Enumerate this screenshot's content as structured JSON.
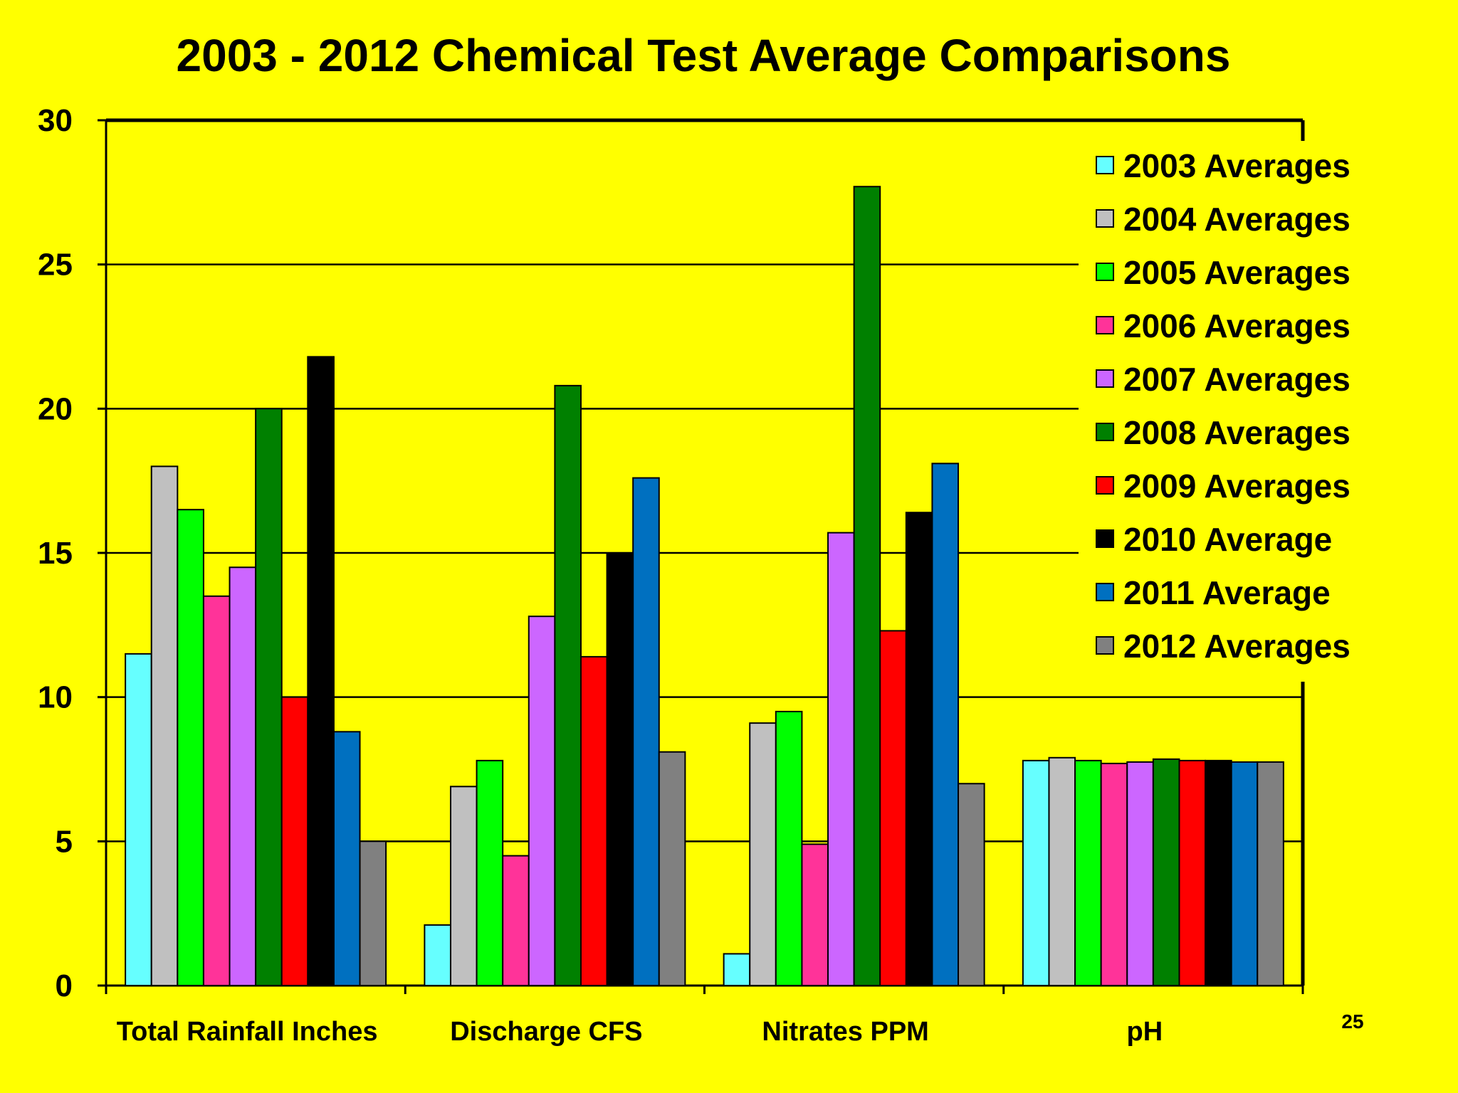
{
  "chart_data": {
    "type": "bar",
    "title": "2003 - 2012 Chemical Test Average Comparisons",
    "xlabel": "",
    "ylabel": "",
    "ylim": [
      0,
      30
    ],
    "yticks": [
      0,
      5,
      10,
      15,
      20,
      25,
      30
    ],
    "grid": true,
    "legend_position": "top-right",
    "categories": [
      "Total Rainfall Inches",
      "Discharge CFS",
      "Nitrates PPM",
      "pH"
    ],
    "series": [
      {
        "name": "2003 Averages",
        "color": "#66ffff",
        "values": [
          11.5,
          2.1,
          1.1,
          7.8
        ]
      },
      {
        "name": "2004 Averages",
        "color": "#c0c0c0",
        "values": [
          18.0,
          6.9,
          9.1,
          7.9
        ]
      },
      {
        "name": "2005 Averages",
        "color": "#00ff00",
        "values": [
          16.5,
          7.8,
          9.5,
          7.8
        ]
      },
      {
        "name": "2006 Averages",
        "color": "#ff3399",
        "values": [
          13.5,
          4.5,
          4.9,
          7.7
        ]
      },
      {
        "name": "2007 Averages",
        "color": "#cc66ff",
        "values": [
          14.5,
          12.8,
          15.7,
          7.75
        ]
      },
      {
        "name": "2008 Averages",
        "color": "#008000",
        "values": [
          20.0,
          20.8,
          27.7,
          7.85
        ]
      },
      {
        "name": "2009 Averages",
        "color": "#ff0000",
        "values": [
          10.0,
          11.4,
          12.3,
          7.8
        ]
      },
      {
        "name": "2010 Average",
        "color": "#000000",
        "values": [
          21.8,
          15.0,
          16.4,
          7.8
        ]
      },
      {
        "name": "2011 Average",
        "color": "#0070c0",
        "values": [
          8.8,
          17.6,
          18.1,
          7.75
        ]
      },
      {
        "name": "2012 Averages",
        "color": "#808080",
        "values": [
          5.0,
          8.1,
          7.0,
          7.75
        ]
      }
    ]
  },
  "page_number": "25",
  "colors": {
    "background": "#ffff00",
    "axis": "#000000",
    "gridline": "#000000"
  }
}
